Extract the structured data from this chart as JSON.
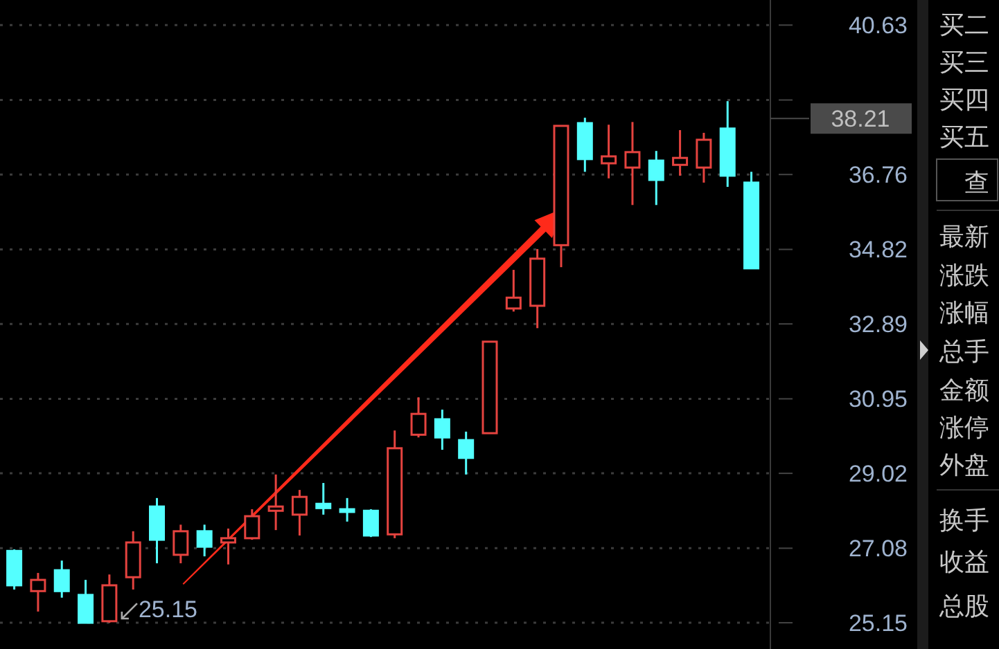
{
  "chart_data": {
    "type": "candlestick",
    "categories": [
      null,
      null,
      null,
      null,
      null,
      null,
      null,
      null,
      null,
      null,
      null,
      null,
      null,
      null,
      null,
      null,
      null,
      null,
      null,
      null,
      null,
      null,
      null,
      null,
      null,
      null,
      null,
      null,
      null,
      null,
      null,
      null
    ],
    "ohlc": [
      [
        27.01,
        27.05,
        26.01,
        26.12
      ],
      [
        25.97,
        26.44,
        25.44,
        26.26
      ],
      [
        26.51,
        26.76,
        25.8,
        25.97
      ],
      [
        25.87,
        26.26,
        25.15,
        25.15
      ],
      [
        25.19,
        26.4,
        25.15,
        26.12
      ],
      [
        26.33,
        27.52,
        26.01,
        27.23
      ],
      [
        28.16,
        28.38,
        26.69,
        27.3
      ],
      [
        26.91,
        27.69,
        26.69,
        27.52
      ],
      [
        27.52,
        27.69,
        26.87,
        27.12
      ],
      [
        27.23,
        27.59,
        26.66,
        27.34
      ],
      [
        27.34,
        28.09,
        27.3,
        27.91
      ],
      [
        28.05,
        28.99,
        27.55,
        28.16
      ],
      [
        27.95,
        28.59,
        27.41,
        28.41
      ],
      [
        28.23,
        28.77,
        27.95,
        28.12
      ],
      [
        28.09,
        28.38,
        27.77,
        28.02
      ],
      [
        28.05,
        28.09,
        27.37,
        27.41
      ],
      [
        27.44,
        30.13,
        27.34,
        29.67
      ],
      [
        30.02,
        30.99,
        29.95,
        30.56
      ],
      [
        30.42,
        30.67,
        29.63,
        29.95
      ],
      [
        29.88,
        30.1,
        28.99,
        29.42
      ],
      [
        30.06,
        32.43,
        30.06,
        32.43
      ],
      [
        33.29,
        34.29,
        33.21,
        33.57
      ],
      [
        33.36,
        34.83,
        32.78,
        34.58
      ],
      [
        34.93,
        38.02,
        34.36,
        38.02
      ],
      [
        38.09,
        38.23,
        36.83,
        37.16
      ],
      [
        37.05,
        38.05,
        36.66,
        37.23
      ],
      [
        36.94,
        38.12,
        35.97,
        37.34
      ],
      [
        37.12,
        37.37,
        35.97,
        36.62
      ],
      [
        37.01,
        37.91,
        36.73,
        37.19
      ],
      [
        36.94,
        37.84,
        36.55,
        37.66
      ],
      [
        37.95,
        38.66,
        36.44,
        36.73
      ],
      [
        36.55,
        36.83,
        34.33,
        34.33
      ]
    ],
    "colors": [
      "#54ffff",
      "#e5433f",
      "#54ffff",
      "#54ffff",
      "#e5433f",
      "#e5433f",
      "#54ffff",
      "#e5433f",
      "#54ffff",
      "#e5433f",
      "#e5433f",
      "#e5433f",
      "#e5433f",
      "#54ffff",
      "#54ffff",
      "#54ffff",
      "#e5433f",
      "#e5433f",
      "#54ffff",
      "#54ffff",
      "#e5433f",
      "#e5433f",
      "#e5433f",
      "#e5433f",
      "#54ffff",
      "#e5433f",
      "#e5433f",
      "#54ffff",
      "#e5433f",
      "#e5433f",
      "#54ffff",
      "#54ffff"
    ],
    "ylim": [
      24.47,
      41.28
    ],
    "yticks": [
      25.15,
      27.08,
      29.02,
      30.95,
      32.89,
      34.82,
      36.76,
      {
        "value": 38.69,
        "label": null
      },
      40.63
    ],
    "grid": "y",
    "ref_lines": [
      {
        "axis": "y",
        "value": 38.21,
        "label": "38.21",
        "color": "#4a4a4a"
      }
    ],
    "annotations": [
      "25.15",
      "买二",
      "买三",
      "买四",
      "买五",
      "查",
      "最新",
      "涨跌",
      "涨幅",
      "总手",
      "金额",
      "涨停",
      "外盘",
      "换手",
      "收益",
      "总股"
    ]
  }
}
